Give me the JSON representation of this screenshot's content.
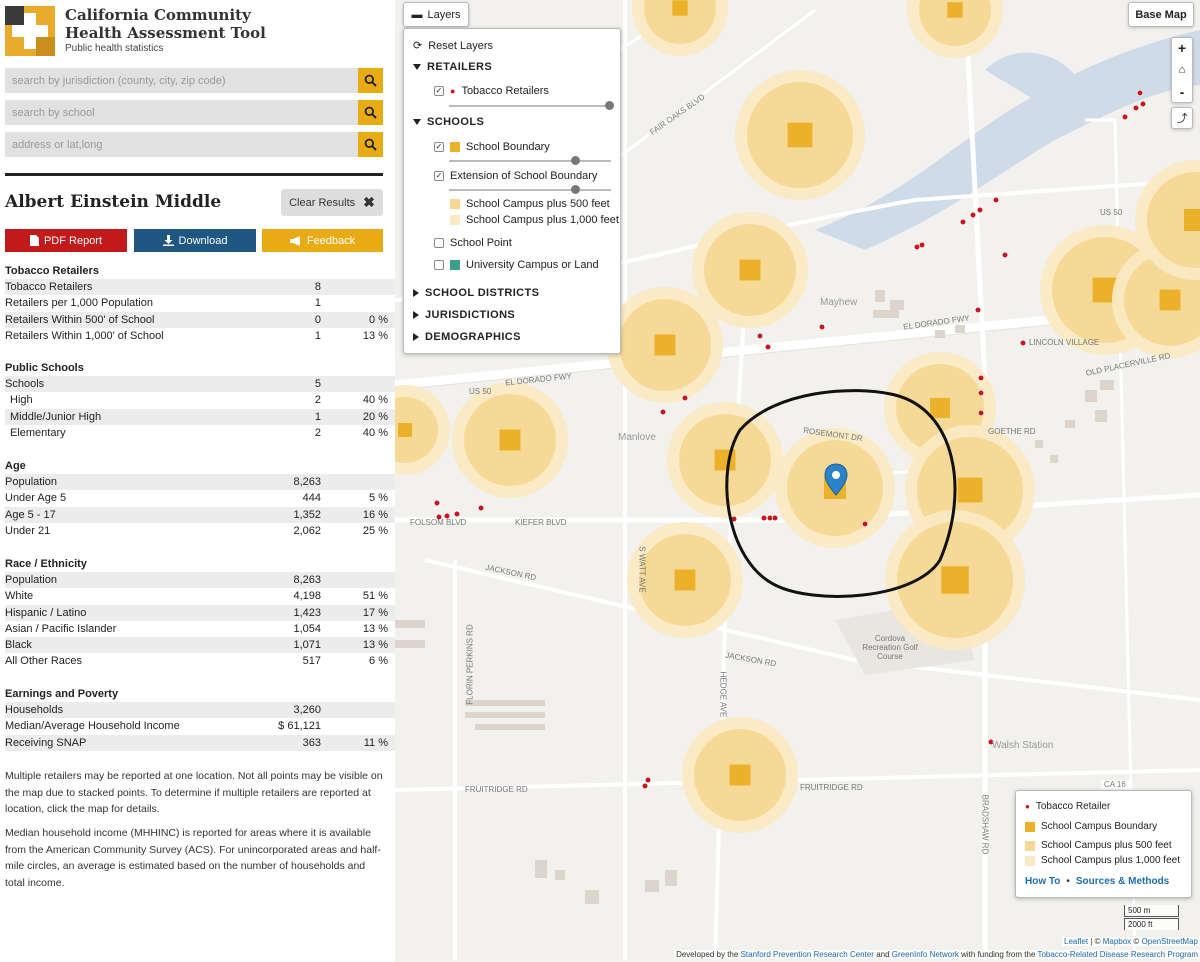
{
  "app": {
    "title_line1": "California Community",
    "title_line2": "Health Assessment Tool",
    "subtitle": "Public health statistics"
  },
  "search": {
    "jurisdiction_placeholder": "search by jurisdiction (county, city, zip code)",
    "school_placeholder": "search by school",
    "address_placeholder": "address or lat,long"
  },
  "result": {
    "title": "Albert Einstein Middle",
    "clear_label": "Clear Results",
    "pdf_label": "PDF Report",
    "download_label": "Download",
    "feedback_label": "Feedback"
  },
  "stats": {
    "tobacco": {
      "heading": "Tobacco Retailers",
      "rows": [
        {
          "label": "Tobacco Retailers",
          "value": "8",
          "pct": ""
        },
        {
          "label": "Retailers per 1,000 Population",
          "value": "1",
          "pct": ""
        },
        {
          "label": "Retailers Within 500' of School",
          "value": "0",
          "pct": "0 %"
        },
        {
          "label": "Retailers Within 1,000' of School",
          "value": "1",
          "pct": "13 %"
        }
      ]
    },
    "schools": {
      "heading": "Public Schools",
      "rows": [
        {
          "label": "Schools",
          "value": "5",
          "pct": ""
        },
        {
          "label": "High",
          "value": "2",
          "pct": "40 %"
        },
        {
          "label": "Middle/Junior High",
          "value": "1",
          "pct": "20 %"
        },
        {
          "label": "Elementary",
          "value": "2",
          "pct": "40 %"
        }
      ]
    },
    "age": {
      "heading": "Age",
      "rows": [
        {
          "label": "Population",
          "value": "8,263",
          "pct": ""
        },
        {
          "label": "Under Age 5",
          "value": "444",
          "pct": "5 %"
        },
        {
          "label": "Age 5 - 17",
          "value": "1,352",
          "pct": "16 %"
        },
        {
          "label": "Under 21",
          "value": "2,062",
          "pct": "25 %"
        }
      ]
    },
    "race": {
      "heading": "Race / Ethnicity",
      "rows": [
        {
          "label": "Population",
          "value": "8,263",
          "pct": ""
        },
        {
          "label": "White",
          "value": "4,198",
          "pct": "51 %"
        },
        {
          "label": "Hispanic / Latino",
          "value": "1,423",
          "pct": "17 %"
        },
        {
          "label": "Asian / Pacific Islander",
          "value": "1,054",
          "pct": "13 %"
        },
        {
          "label": "Black",
          "value": "1,071",
          "pct": "13 %"
        },
        {
          "label": "All Other Races",
          "value": "517",
          "pct": "6 %"
        }
      ]
    },
    "earnings": {
      "heading": "Earnings and Poverty",
      "rows": [
        {
          "label": "Households",
          "value": "3,260",
          "pct": ""
        },
        {
          "label": "Median/Average Household Income",
          "value": "$ 61,121",
          "pct": ""
        },
        {
          "label": "Receiving SNAP",
          "value": "363",
          "pct": "11 %"
        }
      ]
    }
  },
  "notes": {
    "retailers_note": "Multiple retailers may be reported at one location. Not all points may be visible on the map due to stacked points. To determine if multiple retailers are reported at location, click the map for details.",
    "income_note": "Median household income (MHHINC) is reported for areas where it is available from the American Community Survey (ACS). For unincorporated areas and half-mile circles, an average is estimated based on the number of households and total income."
  },
  "map": {
    "layers_button": "Layers",
    "basemap_button": "Base Map",
    "zoom_in": "+",
    "zoom_out": "-",
    "layers": {
      "reset": "Reset Layers",
      "retailers_heading": "RETAILERS",
      "tobacco_retailers": "Tobacco Retailers",
      "schools_heading": "SCHOOLS",
      "school_boundary": "School Boundary",
      "extension": "Extension of School Boundary",
      "plus500": "School Campus plus 500 feet",
      "plus1000": "School Campus plus 1,000 feet",
      "school_point": "School Point",
      "university": "University Campus or Land",
      "districts_heading": "SCHOOL DISTRICTS",
      "jurisdictions_heading": "JURISDICTIONS",
      "demographics_heading": "DEMOGRAPHICS"
    },
    "legend": {
      "retailer": "Tobacco Retailer",
      "boundary": "School Campus Boundary",
      "plus500": "School Campus plus 500 feet",
      "plus1000": "School Campus plus 1,000 feet",
      "howto": "How To",
      "sources": "Sources & Methods"
    },
    "scale": {
      "metric": "500 m",
      "imperial": "2000 ft"
    },
    "attribution": {
      "leaflet": "Leaflet",
      "sep": " | © ",
      "mapbox": "Mapbox",
      "osm_prefix": " © ",
      "osm": "OpenStreetMap"
    },
    "credit": {
      "prefix": "Developed by the ",
      "stanford": "Stanford Prevention Research Center",
      "and": " and ",
      "greeninfo": "GreenInfo Network",
      "funding": " with funding from the ",
      "trdrp": "Tobacco-Related Disease Research Program"
    },
    "labels": {
      "el_dorado_fwy": "EL DORADO FWY",
      "us50_a": "US 50",
      "us50_b": "US 50",
      "kiefer": "KIEFER BLVD",
      "folsom": "FOLSOM BLVD",
      "jackson_rd": "JACKSON RD",
      "fruitridge": "FRUITRIDGE RD",
      "manlove": "Manlove",
      "mayhew": "Mayhew",
      "walsh": "Walsh Station",
      "cordova": "Cordova Recreation Golf Course",
      "ca16": "CA 16",
      "bradshaw": "BRADSHAW RD",
      "watt": "S WATT AVE",
      "rosemont": "ROSEMONT DR",
      "goethe": "GOETHE RD",
      "lincoln": "LINCOLN VILLAGE",
      "fair_oaks": "FAIR OAKS BLVD",
      "old_placerville": "OLD PLACERVILLE RD",
      "hedge": "HEDGE AVE",
      "florin_perkins": "FLORIN PERKINS RD"
    },
    "colors": {
      "boundary": "#ebb12a",
      "plus500": "#f5d894",
      "plus1000": "#fae9c2",
      "retailer": "#c8151b",
      "water": "#cfdbe8",
      "road": "#ffffff"
    }
  }
}
